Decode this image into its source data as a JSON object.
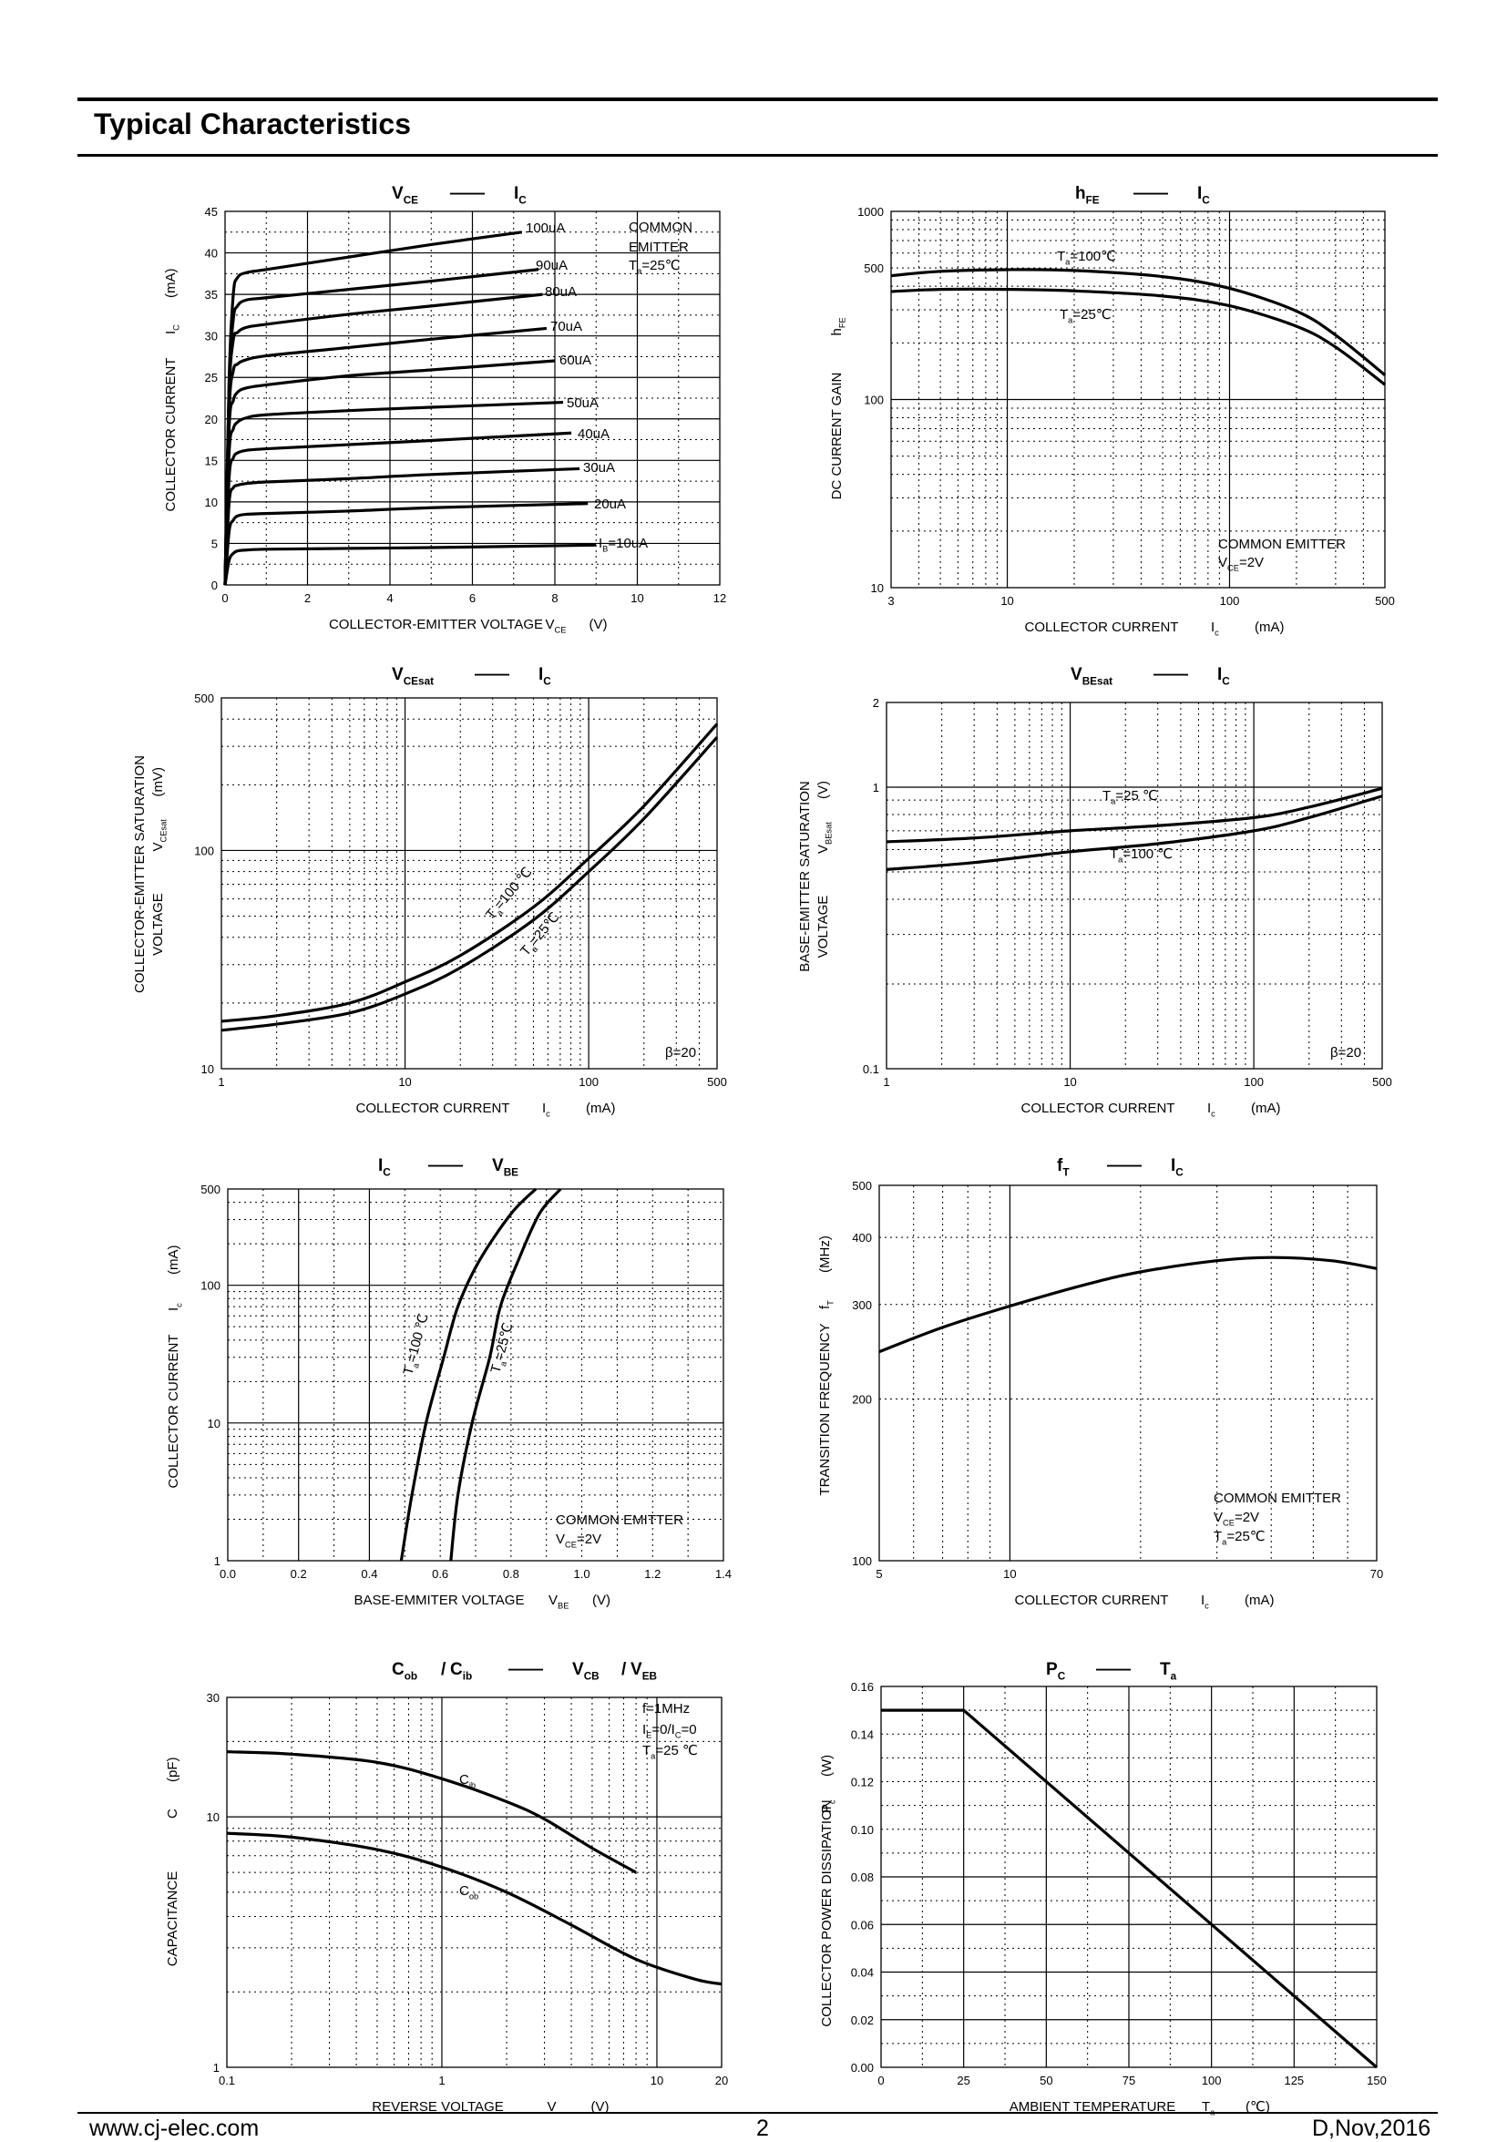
{
  "section_title": "Typical Characteristics",
  "footer": {
    "website": "www.cj-elec.com",
    "page": "2",
    "date": "D,Nov,2016"
  },
  "chart_data": [
    {
      "id": "vce-ic",
      "type": "line",
      "title": [
        [
          "V",
          "CE"
        ],
        "——",
        [
          "I",
          "C"
        ]
      ],
      "xlabel": "COLLECTOR-EMITTER VOLTAGE",
      "xsym": [
        "V",
        "CE"
      ],
      "xunit": "(V)",
      "ylabel": "COLLECTOR CURRENT",
      "ysym": [
        "I",
        "C"
      ],
      "yunit": "(mA)",
      "xlim": [
        0,
        12
      ],
      "ylim": [
        0,
        45
      ],
      "xscale": "linear",
      "yscale": "linear",
      "xticks": [
        0,
        2,
        4,
        6,
        8,
        10,
        12
      ],
      "yticks": [
        0,
        5,
        10,
        15,
        20,
        25,
        30,
        35,
        40,
        45
      ],
      "annotations": [
        "COMMON",
        "EMITTER",
        [
          "T",
          "a",
          "=25℃"
        ]
      ],
      "series": [
        {
          "name": "100uA",
          "x": [
            0,
            0.1,
            0.2,
            0.3,
            0.5,
            1,
            3,
            5,
            7.2
          ],
          "y": [
            0,
            25,
            35,
            37,
            37.6,
            38,
            39.5,
            41,
            42.5
          ]
        },
        {
          "name": "90uA",
          "x": [
            0,
            0.1,
            0.2,
            0.3,
            0.5,
            1,
            3,
            5,
            7.6
          ],
          "y": [
            0,
            24,
            32,
            33.6,
            34.3,
            34.6,
            35.6,
            36.6,
            38
          ]
        },
        {
          "name": "80uA",
          "x": [
            0,
            0.1,
            0.2,
            0.3,
            0.5,
            1,
            3,
            5,
            7.7
          ],
          "y": [
            0,
            23,
            29.5,
            30.4,
            31,
            31.4,
            32.6,
            33.6,
            35
          ]
        },
        {
          "name": "70uA",
          "x": [
            0,
            0.1,
            0.2,
            0.3,
            0.5,
            1,
            3,
            5,
            7.8
          ],
          "y": [
            0,
            21,
            25.8,
            26.6,
            27.1,
            27.6,
            28.6,
            29.6,
            30.9
          ]
        },
        {
          "name": "60uA",
          "x": [
            0,
            0.1,
            0.2,
            0.3,
            0.5,
            1,
            3,
            5,
            8.0
          ],
          "y": [
            0,
            19,
            22.2,
            23.2,
            23.7,
            24.1,
            25.2,
            25.9,
            27
          ]
        },
        {
          "name": "50uA",
          "x": [
            0,
            0.1,
            0.2,
            0.3,
            0.5,
            1,
            3,
            5,
            8.2
          ],
          "y": [
            0,
            16,
            18.8,
            19.6,
            20.1,
            20.5,
            21,
            21.4,
            22
          ]
        },
        {
          "name": "40uA",
          "x": [
            0,
            0.1,
            0.2,
            0.3,
            0.5,
            1,
            3,
            5,
            8.4
          ],
          "y": [
            0,
            13,
            15.3,
            15.9,
            16.2,
            16.4,
            16.9,
            17.4,
            18.3
          ]
        },
        {
          "name": "30uA",
          "x": [
            0,
            0.1,
            0.2,
            0.3,
            0.5,
            1,
            3,
            5,
            8.6
          ],
          "y": [
            0,
            10,
            11.7,
            12,
            12.2,
            12.4,
            12.8,
            13.3,
            14
          ]
        },
        {
          "name": "20uA",
          "x": [
            0,
            0.1,
            0.2,
            0.3,
            0.5,
            1,
            3,
            5,
            8.8
          ],
          "y": [
            0,
            6.5,
            7.8,
            8.3,
            8.5,
            8.6,
            8.9,
            9.3,
            9.8
          ]
        },
        {
          "name": [
            "I",
            "B",
            "=10uA"
          ],
          "x": [
            0,
            0.1,
            0.2,
            0.3,
            0.5,
            1,
            3,
            5,
            9.0
          ],
          "y": [
            0,
            3,
            3.8,
            4.1,
            4.2,
            4.3,
            4.4,
            4.5,
            4.8
          ]
        }
      ]
    },
    {
      "id": "hfe-ic",
      "type": "line",
      "title": [
        [
          "h",
          "FE"
        ],
        "——",
        [
          "I",
          "C"
        ]
      ],
      "xlabel": "COLLECTOR CURRENT",
      "xsym": [
        "I",
        "c"
      ],
      "xunit": "(mA)",
      "ylabel": "DC CURRENT GAIN",
      "ysym": [
        "h",
        "FE"
      ],
      "yunit": "",
      "xlim": [
        3,
        500
      ],
      "ylim": [
        10,
        1000
      ],
      "xscale": "log",
      "yscale": "log",
      "xticks": [
        3,
        10,
        100,
        500
      ],
      "yticks": [
        10,
        100,
        500,
        1000
      ],
      "annotations": [
        "COMMON EMITTER",
        [
          "V",
          "CE",
          "=2V"
        ]
      ],
      "series": [
        {
          "name": [
            "T",
            "a",
            "=100℃"
          ],
          "x": [
            3,
            5,
            10,
            20,
            50,
            100,
            200,
            300,
            500
          ],
          "y": [
            455,
            480,
            490,
            485,
            450,
            390,
            295,
            220,
            135
          ]
        },
        {
          "name": [
            "T",
            "a",
            "=25℃"
          ],
          "x": [
            3,
            5,
            10,
            20,
            50,
            100,
            200,
            300,
            500
          ],
          "y": [
            375,
            385,
            385,
            378,
            355,
            315,
            245,
            190,
            120
          ]
        }
      ]
    },
    {
      "id": "vcesat-ic",
      "type": "line",
      "title": [
        [
          "V",
          "CEsat"
        ],
        "——",
        [
          "I",
          "C"
        ]
      ],
      "xlabel": "COLLECTOR CURRENT",
      "xsym": [
        "I",
        "c"
      ],
      "xunit": "(mA)",
      "ylabel": "COLLECTOR-EMITTER SATURATION",
      "ylabel2": "VOLTAGE",
      "ysym": [
        "V",
        "CEsat"
      ],
      "yunit": "(mV)",
      "xlim": [
        1,
        500
      ],
      "ylim": [
        10,
        500
      ],
      "xscale": "log",
      "yscale": "log",
      "xticks": [
        1,
        10,
        100,
        500
      ],
      "yticks": [
        10,
        100,
        500
      ],
      "annotations": [
        "β=20"
      ],
      "series": [
        {
          "name": [
            "T",
            "a",
            "=100 ℃"
          ],
          "x": [
            1,
            2,
            5,
            10,
            20,
            50,
            100,
            200,
            500
          ],
          "y": [
            16.5,
            17.5,
            20,
            25,
            33,
            55,
            92,
            160,
            380
          ]
        },
        {
          "name": [
            "T",
            "a",
            "=25℃"
          ],
          "x": [
            1,
            2,
            5,
            10,
            20,
            50,
            100,
            200,
            500
          ],
          "y": [
            15,
            16,
            18,
            22,
            29,
            48,
            80,
            140,
            330
          ]
        }
      ]
    },
    {
      "id": "vbesat-ic",
      "type": "line",
      "title": [
        [
          "V",
          "BEsat"
        ],
        "——",
        [
          "I",
          "C"
        ]
      ],
      "xlabel": "COLLECTOR CURRENT",
      "xsym": [
        "I",
        "c"
      ],
      "xunit": "(mA)",
      "ylabel": "BASE-EMITTER SATURATION",
      "ylabel2": "VOLTAGE",
      "ysym": [
        "V",
        "BEsat"
      ],
      "yunit": "(V)",
      "xlim": [
        1,
        500
      ],
      "ylim": [
        0.1,
        2
      ],
      "xscale": "log",
      "yscale": "log",
      "xticks": [
        1,
        10,
        100,
        500
      ],
      "yticks": [
        0.1,
        1,
        2
      ],
      "annotations": [
        "β=20"
      ],
      "series": [
        {
          "name": [
            "T",
            "a",
            "=25 ℃"
          ],
          "x": [
            1,
            3,
            10,
            30,
            100,
            200,
            500
          ],
          "y": [
            0.64,
            0.66,
            0.7,
            0.73,
            0.78,
            0.85,
            0.99
          ]
        },
        {
          "name": [
            "T",
            "a",
            "=100 ℃"
          ],
          "x": [
            1,
            3,
            10,
            30,
            100,
            200,
            500
          ],
          "y": [
            0.51,
            0.54,
            0.59,
            0.63,
            0.7,
            0.78,
            0.93
          ]
        }
      ]
    },
    {
      "id": "ic-vbe",
      "type": "line",
      "title": [
        [
          "I",
          "C"
        ],
        "——",
        [
          "V",
          "BE"
        ]
      ],
      "xlabel": "BASE-EMMITER VOLTAGE",
      "xsym": [
        "V",
        "BE"
      ],
      "xunit": "(V)",
      "ylabel": "COLLECTOR CURRENT",
      "ysym": [
        "I",
        "c"
      ],
      "yunit": "(mA)",
      "xlim": [
        0,
        1.4
      ],
      "ylim": [
        1,
        500
      ],
      "xscale": "linear",
      "yscale": "log",
      "xticks": [
        0.0,
        0.2,
        0.4,
        0.6,
        0.8,
        1.0,
        1.2,
        1.4
      ],
      "xticklabels": [
        "0.0",
        "0.2",
        "0.4",
        "0.6",
        "0.8",
        "1.0",
        "1.2",
        "1.4"
      ],
      "yticks": [
        1,
        10,
        100,
        500
      ],
      "annotations": [
        "COMMON EMITTER",
        [
          "V",
          "CE",
          "=2V"
        ]
      ],
      "series": [
        {
          "name": [
            "T",
            "a",
            "=100 ℃"
          ],
          "x": [
            0.49,
            0.52,
            0.56,
            0.61,
            0.65,
            0.71,
            0.8,
            0.87
          ],
          "y": [
            1,
            3,
            10,
            30,
            70,
            150,
            330,
            500
          ]
        },
        {
          "name": [
            "T",
            "a",
            "=25℃"
          ],
          "x": [
            0.63,
            0.65,
            0.69,
            0.74,
            0.77,
            0.82,
            0.88,
            0.94
          ],
          "y": [
            1,
            3,
            10,
            30,
            70,
            150,
            330,
            500
          ]
        }
      ]
    },
    {
      "id": "ft-ic",
      "type": "line",
      "title": [
        [
          "f",
          "T"
        ],
        "——",
        [
          "I",
          "C"
        ]
      ],
      "xlabel": "COLLECTOR CURRENT",
      "xsym": [
        "I",
        "c"
      ],
      "xunit": "(mA)",
      "ylabel": "TRANSITION FREQUENCY",
      "ysym": [
        "f",
        "T"
      ],
      "yunit": "(MHz)",
      "xlim": [
        5,
        70
      ],
      "ylim": [
        100,
        500
      ],
      "xscale": "log",
      "yscale": "log",
      "xticks": [
        5,
        10,
        70
      ],
      "yticks": [
        100,
        200,
        300,
        400,
        500
      ],
      "annotations": [
        "COMMON EMITTER",
        [
          "V",
          "CE",
          "=2V"
        ],
        [
          "T",
          "a",
          "=25℃"
        ]
      ],
      "series": [
        {
          "name": "",
          "x": [
            5,
            7,
            10,
            15,
            20,
            30,
            40,
            55,
            70
          ],
          "y": [
            245,
            272,
            298,
            327,
            345,
            362,
            367,
            362,
            350
          ]
        }
      ]
    },
    {
      "id": "cap-v",
      "type": "line",
      "title": [
        [
          "C",
          "ob"
        ],
        "/",
        [
          "C",
          "ib"
        ],
        "——",
        [
          "V",
          "CB"
        ],
        "/",
        [
          "V",
          "EB"
        ]
      ],
      "xlabel": "REVERSE  VOLTAGE",
      "xsym": [
        "V",
        ""
      ],
      "xunit": "(V)",
      "ylabel": "CAPACITANCE",
      "ysym": [
        "C",
        ""
      ],
      "yunit": "(pF)",
      "xlim": [
        0.1,
        20
      ],
      "ylim": [
        1,
        30
      ],
      "xscale": "log",
      "yscale": "log",
      "xticks": [
        0.1,
        1,
        10,
        20
      ],
      "yticks": [
        1,
        10,
        30
      ],
      "annotations": [
        "f=1MHz",
        [
          "I",
          "E",
          "=0/I",
          "C",
          "=0"
        ],
        [
          "T",
          "a",
          "=25 ℃"
        ]
      ],
      "series": [
        {
          "name": [
            "C",
            "ib"
          ],
          "x": [
            0.1,
            0.2,
            0.5,
            1,
            2,
            3,
            5,
            8
          ],
          "y": [
            18.2,
            17.8,
            16.5,
            14.2,
            11.5,
            9.8,
            7.5,
            6.0
          ]
        },
        {
          "name": [
            "C",
            "ob"
          ],
          "x": [
            0.1,
            0.2,
            0.5,
            1,
            2,
            4,
            8,
            15,
            20
          ],
          "y": [
            8.6,
            8.3,
            7.4,
            6.3,
            5.0,
            3.7,
            2.7,
            2.25,
            2.15
          ]
        }
      ]
    },
    {
      "id": "pc-ta",
      "type": "line",
      "title": [
        [
          "P",
          "C"
        ],
        "——",
        [
          "T",
          "a"
        ]
      ],
      "xlabel": "AMBIENT TEMPERATURE",
      "xsym": [
        "T",
        "a"
      ],
      "xunit": "(℃)",
      "ylabel": "COLLECTOR POWER DISSIPATION",
      "ysym": [
        "P",
        "c"
      ],
      "yunit": "(W)",
      "xlim": [
        0,
        150
      ],
      "ylim": [
        0,
        0.16
      ],
      "xscale": "linear",
      "yscale": "linear",
      "xticks": [
        0,
        25,
        50,
        75,
        100,
        125,
        150
      ],
      "yticks": [
        0,
        0.02,
        0.04,
        0.06,
        0.08,
        0.1,
        0.12,
        0.14,
        0.16
      ],
      "yticklabels": [
        "0.00",
        "0.02",
        "0.04",
        "0.06",
        "0.08",
        "0.10",
        "0.12",
        "0.14",
        "0.16"
      ],
      "annotations": [],
      "series": [
        {
          "name": "",
          "x": [
            0,
            25,
            150
          ],
          "y": [
            0.15,
            0.15,
            0
          ]
        }
      ]
    }
  ]
}
